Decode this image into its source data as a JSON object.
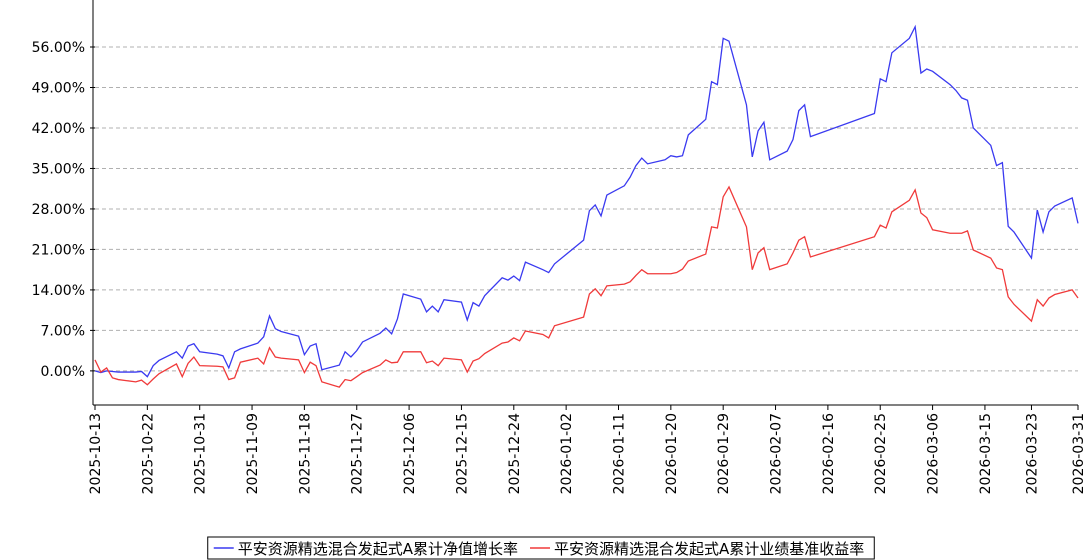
{
  "chart_data": {
    "type": "line",
    "x": [
      "2025-10-13",
      "2025-10-14",
      "2025-10-15",
      "2025-10-16",
      "2025-10-17",
      "2025-10-20",
      "2025-10-21",
      "2025-10-22",
      "2025-10-23",
      "2025-10-24",
      "2025-10-27",
      "2025-10-28",
      "2025-10-29",
      "2025-10-30",
      "2025-10-31",
      "2025-11-03",
      "2025-11-04",
      "2025-11-05",
      "2025-11-06",
      "2025-11-07",
      "2025-11-10",
      "2025-11-11",
      "2025-11-12",
      "2025-11-13",
      "2025-11-14",
      "2025-11-17",
      "2025-11-18",
      "2025-11-19",
      "2025-11-20",
      "2025-11-21",
      "2025-11-24",
      "2025-11-25",
      "2025-11-26",
      "2025-11-27",
      "2025-11-28",
      "2025-12-01",
      "2025-12-02",
      "2025-12-03",
      "2025-12-04",
      "2025-12-05",
      "2025-12-08",
      "2025-12-09",
      "2025-12-10",
      "2025-12-11",
      "2025-12-12",
      "2025-12-15",
      "2025-12-16",
      "2025-12-17",
      "2025-12-18",
      "2025-12-19",
      "2025-12-22",
      "2025-12-23",
      "2025-12-24",
      "2025-12-25",
      "2025-12-26",
      "2025-12-29",
      "2025-12-30",
      "2025-12-31",
      "2026-01-05",
      "2026-01-06",
      "2026-01-07",
      "2026-01-08",
      "2026-01-09",
      "2026-01-12",
      "2026-01-13",
      "2026-01-14",
      "2026-01-15",
      "2026-01-16",
      "2026-01-19",
      "2026-01-20",
      "2026-01-21",
      "2026-01-22",
      "2026-01-23",
      "2026-01-26",
      "2026-01-27",
      "2026-01-28",
      "2026-01-29",
      "2026-01-30",
      "2026-02-02",
      "2026-02-03",
      "2026-02-04",
      "2026-02-05",
      "2026-02-06",
      "2026-02-09",
      "2026-02-10",
      "2026-02-11",
      "2026-02-12",
      "2026-02-13",
      "2026-02-24",
      "2026-02-25",
      "2026-02-26",
      "2026-02-27",
      "2026-03-02",
      "2026-03-03",
      "2026-03-04",
      "2026-03-05",
      "2026-03-06",
      "2026-03-09",
      "2026-03-10",
      "2026-03-11",
      "2026-03-12",
      "2026-03-13",
      "2026-03-16",
      "2026-03-17",
      "2026-03-18",
      "2026-03-19",
      "2026-03-20",
      "2026-03-23",
      "2026-03-24",
      "2026-03-25",
      "2026-03-26",
      "2026-03-27",
      "2026-03-30",
      "2026-03-31"
    ],
    "series": [
      {
        "name": "平安资源精选混合发起式A累计净值增长率",
        "color": "#3a3af0",
        "values": [
          0.0,
          -0.3,
          0.0,
          -0.1,
          -0.2,
          -0.2,
          -0.1,
          -1.0,
          0.9,
          1.8,
          3.3,
          2.2,
          4.3,
          4.7,
          3.3,
          2.9,
          2.6,
          0.5,
          3.3,
          3.8,
          4.8,
          5.9,
          9.5,
          7.3,
          6.8,
          6.0,
          2.8,
          4.3,
          4.7,
          0.2,
          1.0,
          3.3,
          2.4,
          3.5,
          5.0,
          6.5,
          7.4,
          6.4,
          9.0,
          13.3,
          12.4,
          10.2,
          11.2,
          10.2,
          12.3,
          11.9,
          8.8,
          11.8,
          11.2,
          13.0,
          16.1,
          15.7,
          16.4,
          15.6,
          18.8,
          17.5,
          17.0,
          18.5,
          22.6,
          27.7,
          28.7,
          26.8,
          30.4,
          32.0,
          33.5,
          35.5,
          36.8,
          35.8,
          36.5,
          37.2,
          37.0,
          37.2,
          40.8,
          43.5,
          50.0,
          49.5,
          57.5,
          57.0,
          46.0,
          37.0,
          41.5,
          43.0,
          36.5,
          38.0,
          40.0,
          45.0,
          46.0,
          40.5,
          44.5,
          50.5,
          50.0,
          55.0,
          57.5,
          59.5,
          51.5,
          52.2,
          51.8,
          49.5,
          48.5,
          47.2,
          46.8,
          42.0,
          39.0,
          35.5,
          36.0,
          25.0,
          24.0,
          19.5,
          27.8,
          24.0,
          27.5,
          28.5,
          29.9,
          25.5
        ]
      },
      {
        "name": "平安资源精选混合发起式A累计业绩基准收益率",
        "color": "#f03a3a",
        "values": [
          1.9,
          -0.2,
          0.5,
          -1.2,
          -1.5,
          -1.9,
          -1.6,
          -2.4,
          -1.4,
          -0.5,
          1.2,
          -1.0,
          1.3,
          2.4,
          0.9,
          0.8,
          0.7,
          -1.5,
          -1.2,
          1.5,
          2.2,
          1.2,
          4.0,
          2.4,
          2.2,
          1.9,
          -0.3,
          1.5,
          0.9,
          -1.9,
          -2.8,
          -1.5,
          -1.7,
          -1.0,
          -0.3,
          1.0,
          1.9,
          1.4,
          1.5,
          3.3,
          3.3,
          1.4,
          1.7,
          0.9,
          2.2,
          1.9,
          -0.2,
          1.7,
          2.1,
          3.0,
          4.8,
          5.0,
          5.7,
          5.2,
          6.9,
          6.3,
          5.7,
          7.8,
          9.3,
          13.3,
          14.2,
          13.0,
          14.7,
          15.0,
          15.4,
          16.5,
          17.5,
          16.8,
          16.8,
          16.8,
          17.0,
          17.6,
          19.0,
          20.2,
          24.9,
          24.7,
          30.1,
          31.8,
          24.9,
          17.5,
          20.4,
          21.3,
          17.5,
          18.5,
          20.4,
          22.6,
          23.2,
          19.7,
          23.2,
          25.2,
          24.7,
          27.5,
          29.5,
          31.3,
          27.3,
          26.5,
          24.4,
          23.8,
          23.8,
          23.8,
          24.2,
          20.9,
          19.5,
          17.8,
          17.5,
          12.8,
          11.5,
          8.6,
          12.3,
          11.2,
          12.6,
          13.2,
          14.0,
          12.6
        ]
      }
    ],
    "xlim": [
      "2025-10-13",
      "2026-03-31"
    ],
    "xticks": [
      "2025-10-13",
      "2025-10-22",
      "2025-10-31",
      "2025-11-09",
      "2025-11-18",
      "2025-11-27",
      "2025-12-06",
      "2025-12-15",
      "2025-12-24",
      "2026-01-02",
      "2026-01-11",
      "2026-01-20",
      "2026-01-29",
      "2026-02-07",
      "2026-02-16",
      "2026-02-25",
      "2026-03-06",
      "2026-03-15",
      "2026-03-23",
      "2026-03-31"
    ],
    "ylim": [
      -5.9,
      62.4
    ],
    "yticks": [
      {
        "value": 0,
        "label": "0.00%"
      },
      {
        "value": 7,
        "label": "7.00%"
      },
      {
        "value": 14,
        "label": "14.00%"
      },
      {
        "value": 21,
        "label": "21.00%"
      },
      {
        "value": 28,
        "label": "28.00%"
      },
      {
        "value": 35,
        "label": "35.00%"
      },
      {
        "value": 42,
        "label": "42.00%"
      },
      {
        "value": 49,
        "label": "49.00%"
      },
      {
        "value": 56,
        "label": "56.00%"
      }
    ],
    "grid": true,
    "legend": "bottom"
  }
}
